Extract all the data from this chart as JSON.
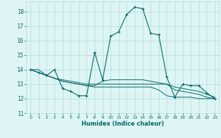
{
  "xlabel": "Humidex (Indice chaleur)",
  "x_values": [
    0,
    1,
    2,
    3,
    4,
    5,
    6,
    7,
    8,
    9,
    10,
    11,
    12,
    13,
    14,
    15,
    16,
    17,
    18,
    19,
    20,
    21,
    22,
    23
  ],
  "main_line": [
    14.0,
    13.8,
    13.6,
    14.0,
    12.7,
    12.5,
    12.2,
    12.2,
    15.2,
    13.3,
    16.3,
    16.6,
    17.8,
    18.3,
    18.2,
    16.5,
    16.4,
    13.5,
    12.1,
    13.0,
    12.9,
    12.9,
    12.4,
    12.0
  ],
  "line2": [
    14.0,
    13.8,
    13.6,
    13.4,
    13.3,
    13.2,
    13.1,
    13.0,
    13.0,
    13.0,
    13.0,
    13.0,
    13.0,
    13.0,
    13.0,
    13.0,
    13.0,
    13.0,
    12.8,
    12.7,
    12.6,
    12.5,
    12.3,
    12.1
  ],
  "line3": [
    14.0,
    13.8,
    13.6,
    13.4,
    13.2,
    13.1,
    13.0,
    12.9,
    12.9,
    13.2,
    13.3,
    13.3,
    13.3,
    13.3,
    13.3,
    13.2,
    13.1,
    13.0,
    12.6,
    12.5,
    12.4,
    12.3,
    12.1,
    12.0
  ],
  "line4": [
    14.0,
    14.0,
    13.6,
    13.4,
    13.2,
    13.1,
    13.0,
    12.9,
    12.8,
    12.8,
    12.8,
    12.8,
    12.8,
    12.8,
    12.8,
    12.8,
    12.6,
    12.2,
    12.1,
    12.1,
    12.1,
    12.0,
    12.0,
    12.0
  ],
  "line_color": "#006666",
  "bg_color": "#dff4f4",
  "grid_color": "#aadddd",
  "ylim": [
    11,
    18.7
  ],
  "yticks": [
    11,
    12,
    13,
    14,
    15,
    16,
    17,
    18
  ],
  "xlim": [
    -0.5,
    23.5
  ],
  "xticks": [
    0,
    1,
    2,
    3,
    4,
    5,
    6,
    7,
    8,
    9,
    10,
    11,
    12,
    13,
    14,
    15,
    16,
    17,
    18,
    19,
    20,
    21,
    22,
    23
  ]
}
